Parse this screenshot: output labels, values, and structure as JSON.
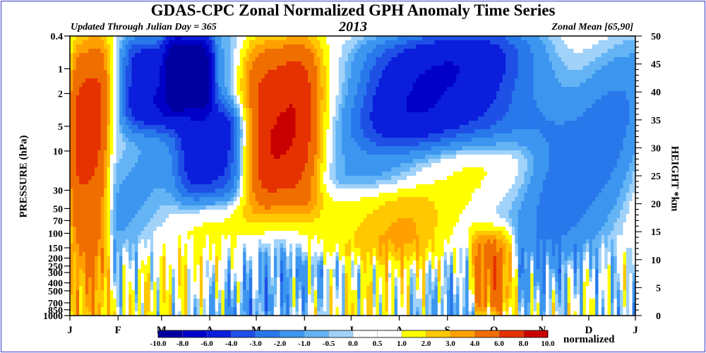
{
  "title": "GDAS-CPC Zonal Normalized GPH Anomaly Time Series",
  "subtitle_left": "Updated Through Julian Day = 365",
  "year": "2013",
  "subtitle_right": "Zonal Mean [65,90]",
  "chart_data": {
    "type": "heatmap",
    "title": "GDAS-CPC Zonal Normalized GPH Anomaly Time Series",
    "year": "2013",
    "ylabel_left": "PRESSURE (hPa)",
    "ylabel_right": "HEIGHT *km",
    "xlabel": "",
    "x_tick_labels": [
      "J",
      "F",
      "M",
      "A",
      "M",
      "J",
      "J",
      "A",
      "S",
      "O",
      "N",
      "D",
      "J"
    ],
    "x_tick_days": [
      1,
      32,
      60,
      91,
      121,
      152,
      182,
      213,
      244,
      274,
      305,
      335,
      365
    ],
    "x_range": [
      1,
      365
    ],
    "pressure_ticks": [
      {
        "label": "0.4",
        "hpa": 0.4
      },
      {
        "label": "1",
        "hpa": 1
      },
      {
        "label": "2",
        "hpa": 2
      },
      {
        "label": "5",
        "hpa": 5
      },
      {
        "label": "10",
        "hpa": 10
      },
      {
        "label": "30",
        "hpa": 30
      },
      {
        "label": "50",
        "hpa": 50
      },
      {
        "label": "70",
        "hpa": 70
      },
      {
        "label": "100",
        "hpa": 100
      },
      {
        "label": "150",
        "hpa": 150
      },
      {
        "label": "200",
        "hpa": 200
      },
      {
        "label": "250",
        "hpa": 250
      },
      {
        "label": "300",
        "hpa": 300
      },
      {
        "label": "400",
        "hpa": 400
      },
      {
        "label": "500",
        "hpa": 500
      },
      {
        "label": "700",
        "hpa": 700
      },
      {
        "label": "850",
        "hpa": 850
      },
      {
        "label": "1000",
        "hpa": 1000
      }
    ],
    "height_ticks": [
      "0",
      "5",
      "10",
      "15",
      "20",
      "25",
      "30",
      "35",
      "40",
      "45",
      "50"
    ],
    "height_range_km": [
      0,
      50
    ],
    "colorbar": {
      "label": "normalized",
      "tick_labels": [
        "-10.0",
        "-8.0",
        "-6.0",
        "-4.0",
        "-3.0",
        "-2.0",
        "-1.0",
        "-0.5",
        "0.0",
        "0.5",
        "1.0",
        "2.0",
        "3.0",
        "4.0",
        "6.0",
        "8.0",
        "10.0"
      ],
      "colors": [
        "#0000a0",
        "#0000c8",
        "#0a1edc",
        "#1e50e6",
        "#2878eb",
        "#3c96f0",
        "#64b4f5",
        "#a0d2fa",
        "#ffffff",
        "#ffffff",
        "#ffff00",
        "#ffc800",
        "#ffa000",
        "#f06e00",
        "#e63200",
        "#c80000"
      ]
    },
    "approximate_features": [
      {
        "days": [
          1,
          25
        ],
        "levels": "0.4-1000 hPa",
        "value": 6.0
      },
      {
        "days": [
          35,
          70
        ],
        "levels": "0.4-5 hPa",
        "value": -6.0
      },
      {
        "days": [
          65,
          92
        ],
        "levels": "0.4-3 hPa",
        "value": -10.0
      },
      {
        "days": [
          72,
          118
        ],
        "levels": "3-40 hPa",
        "value": -5.0
      },
      {
        "days": [
          112,
          160
        ],
        "levels": "0.4-50 hPa",
        "value": 7.0
      },
      {
        "days": [
          150,
          232
        ],
        "levels": "30-200 hPa",
        "value": 2.5
      },
      {
        "days": [
          185,
          300
        ],
        "levels": "0.4-8 hPa",
        "value": -5.0
      },
      {
        "days": [
          260,
          285
        ],
        "levels": "100-1000 hPa",
        "value": 6.0
      },
      {
        "days": [
          300,
          362
        ],
        "levels": "0.4-1000 hPa",
        "value": -1.5
      }
    ]
  }
}
